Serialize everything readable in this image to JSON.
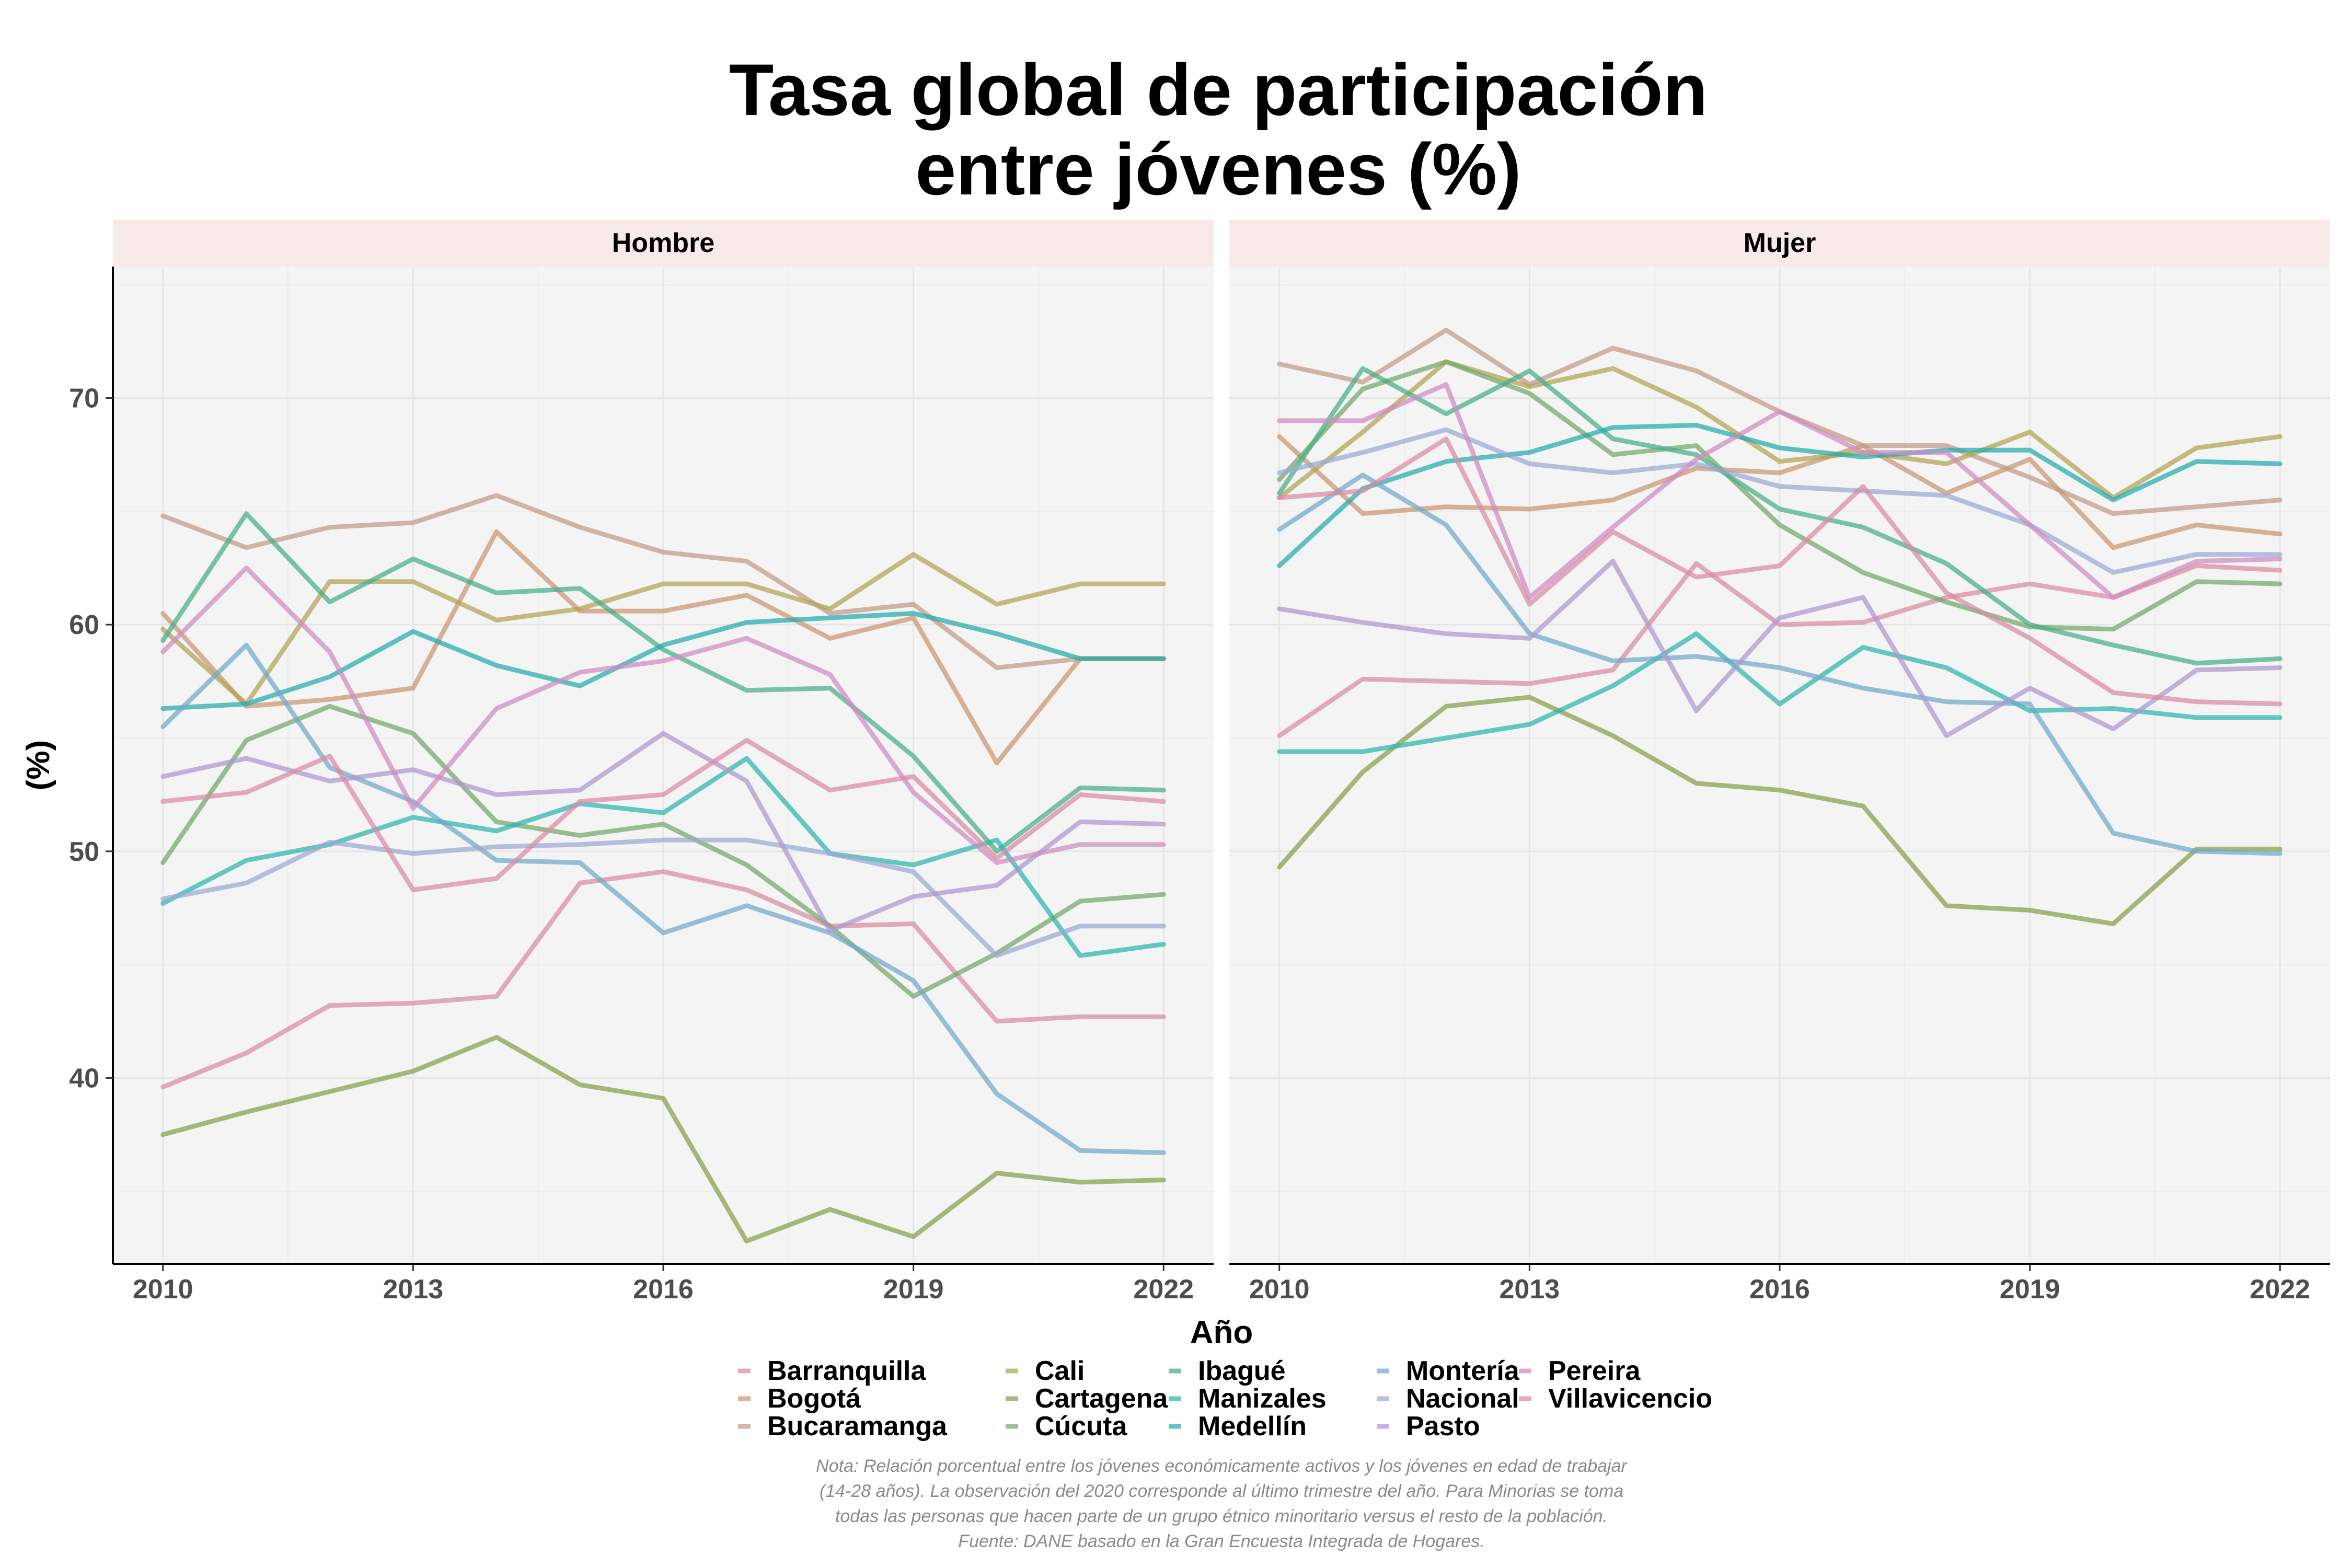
{
  "chart_data": {
    "type": "line",
    "title_lines": [
      "Tasa global de participación",
      "entre jóvenes (%)"
    ],
    "xlabel": "Año",
    "ylabel": "(%)",
    "x": [
      2010,
      2011,
      2012,
      2013,
      2014,
      2015,
      2016,
      2017,
      2018,
      2019,
      2020,
      2021,
      2022
    ],
    "x_ticks": [
      2010,
      2013,
      2016,
      2019,
      2022
    ],
    "x_tick_labels": [
      "2010",
      "2013",
      "2016",
      "2019",
      "2022"
    ],
    "xlim": [
      2009.4,
      2022.6
    ],
    "y_ticks": [
      40,
      50,
      60,
      70
    ],
    "y_tick_labels": [
      "40",
      "50",
      "60",
      "70"
    ],
    "ylim": [
      31.8,
      75.8
    ],
    "grid": true,
    "legend_position": "bottom",
    "colors": {
      "Barranquilla": "#d98ca0",
      "Bogotá": "#c9966f",
      "Bucaramanga": "#c39a86",
      "Cali": "#b1a453",
      "Cartagena": "#85a04a",
      "Cúcuta": "#71a86a",
      "Ibagué": "#46ad88",
      "Manizales": "#2cb4ad",
      "Medellín": "#22aaaa",
      "Montería": "#6fa8cb",
      "Nacional": "#98a9d2",
      "Pasto": "#ad97d0",
      "Pereira": "#cf8ac2",
      "Villavicencio": "#d88aa4"
    },
    "legend": [
      [
        "Barranquilla",
        "Bogotá",
        "Bucaramanga"
      ],
      [
        "Cali",
        "Cartagena",
        "Cúcuta"
      ],
      [
        "Ibagué",
        "Manizales",
        "Medellín"
      ],
      [
        "Montería",
        "Nacional",
        "Pasto"
      ],
      [
        "Pereira",
        "Villavicencio"
      ]
    ],
    "panels": [
      {
        "label": "Hombre",
        "series": [
          {
            "name": "Barranquilla",
            "values": [
              39.6,
              41.1,
              43.2,
              43.3,
              43.6,
              48.6,
              49.1,
              48.3,
              46.7,
              46.8,
              42.5,
              42.7,
              42.7
            ]
          },
          {
            "name": "Bogotá",
            "values": [
              60.5,
              56.4,
              56.7,
              57.2,
              64.1,
              60.6,
              60.6,
              61.3,
              59.4,
              60.3,
              53.9,
              58.5,
              58.5
            ]
          },
          {
            "name": "Bucaramanga",
            "values": [
              64.8,
              63.4,
              64.3,
              64.5,
              65.7,
              64.3,
              63.2,
              62.8,
              60.5,
              60.9,
              58.1,
              58.5,
              58.5
            ]
          },
          {
            "name": "Cali",
            "values": [
              59.8,
              56.5,
              61.9,
              61.9,
              60.2,
              60.7,
              61.8,
              61.8,
              60.7,
              63.1,
              60.9,
              61.8,
              61.8
            ]
          },
          {
            "name": "Cartagena",
            "values": [
              37.5,
              38.5,
              39.4,
              40.3,
              41.8,
              39.7,
              39.1,
              32.8,
              34.2,
              33.0,
              35.8,
              35.4,
              35.5
            ]
          },
          {
            "name": "Cúcuta",
            "values": [
              49.5,
              54.9,
              56.4,
              55.2,
              51.3,
              50.7,
              51.2,
              49.4,
              46.7,
              43.6,
              45.5,
              47.8,
              48.1
            ]
          },
          {
            "name": "Ibagué",
            "values": [
              59.3,
              64.9,
              61.0,
              62.9,
              61.4,
              61.6,
              58.9,
              57.1,
              57.2,
              54.2,
              50.0,
              52.8,
              52.7
            ]
          },
          {
            "name": "Manizales",
            "values": [
              47.7,
              49.6,
              50.3,
              51.5,
              50.9,
              52.1,
              51.7,
              54.1,
              49.9,
              49.4,
              50.5,
              45.4,
              45.9
            ]
          },
          {
            "name": "Medellín",
            "values": [
              56.3,
              56.5,
              57.7,
              59.7,
              58.2,
              57.3,
              59.1,
              60.1,
              60.3,
              60.5,
              59.6,
              58.5,
              58.5
            ]
          },
          {
            "name": "Montería",
            "values": [
              55.5,
              59.1,
              53.7,
              52.2,
              49.6,
              49.5,
              46.4,
              47.6,
              46.4,
              44.3,
              39.3,
              36.8,
              36.7
            ]
          },
          {
            "name": "Nacional",
            "values": [
              47.9,
              48.6,
              50.4,
              49.9,
              50.2,
              50.3,
              50.5,
              50.5,
              49.9,
              49.1,
              45.4,
              46.7,
              46.7
            ]
          },
          {
            "name": "Pasto",
            "values": [
              53.3,
              54.1,
              53.1,
              53.6,
              52.5,
              52.7,
              55.2,
              53.1,
              46.5,
              48.0,
              48.5,
              51.3,
              51.2
            ]
          },
          {
            "name": "Pereira",
            "values": [
              58.8,
              62.5,
              58.8,
              51.9,
              56.3,
              57.9,
              58.4,
              59.4,
              57.8,
              52.6,
              49.5,
              50.3,
              50.3
            ]
          },
          {
            "name": "Villavicencio",
            "values": [
              52.2,
              52.6,
              54.2,
              48.3,
              48.8,
              52.2,
              52.5,
              54.9,
              52.7,
              53.3,
              49.7,
              52.5,
              52.2
            ]
          }
        ]
      },
      {
        "label": "Mujer",
        "series": [
          {
            "name": "Barranquilla",
            "values": [
              55.1,
              57.6,
              57.5,
              57.4,
              58.0,
              62.7,
              60.0,
              60.1,
              61.2,
              61.8,
              61.2,
              62.6,
              62.4
            ]
          },
          {
            "name": "Bogotá",
            "values": [
              68.3,
              64.9,
              65.2,
              65.1,
              65.5,
              66.9,
              66.7,
              67.9,
              65.8,
              67.3,
              63.4,
              64.4,
              64.0
            ]
          },
          {
            "name": "Bucaramanga",
            "values": [
              71.5,
              70.7,
              73.0,
              70.6,
              72.2,
              71.2,
              69.4,
              67.9,
              67.9,
              66.5,
              64.9,
              65.2,
              65.5
            ]
          },
          {
            "name": "Cali",
            "values": [
              65.6,
              68.5,
              71.6,
              70.5,
              71.3,
              69.6,
              67.2,
              67.6,
              67.1,
              68.5,
              65.6,
              67.8,
              68.3
            ]
          },
          {
            "name": "Cartagena",
            "values": [
              49.3,
              53.5,
              56.4,
              56.8,
              55.1,
              53.0,
              52.7,
              52.0,
              47.6,
              47.4,
              46.8,
              50.1,
              50.1
            ]
          },
          {
            "name": "Cúcuta",
            "values": [
              66.4,
              70.4,
              71.6,
              70.2,
              67.5,
              67.9,
              64.4,
              62.3,
              61.0,
              59.9,
              59.8,
              61.9,
              61.8
            ]
          },
          {
            "name": "Ibagué",
            "values": [
              65.8,
              71.3,
              69.3,
              71.2,
              68.2,
              67.5,
              65.1,
              64.3,
              62.7,
              60.0,
              59.1,
              58.3,
              58.5
            ]
          },
          {
            "name": "Manizales",
            "values": [
              54.4,
              54.4,
              55.0,
              55.6,
              57.3,
              59.6,
              56.5,
              59.0,
              58.1,
              56.2,
              56.3,
              55.9,
              55.9
            ]
          },
          {
            "name": "Medellín",
            "values": [
              62.6,
              66.0,
              67.2,
              67.6,
              68.7,
              68.8,
              67.8,
              67.4,
              67.7,
              67.7,
              65.5,
              67.2,
              67.1
            ]
          },
          {
            "name": "Montería",
            "values": [
              64.2,
              66.6,
              64.4,
              59.6,
              58.4,
              58.6,
              58.1,
              57.2,
              56.6,
              56.5,
              50.8,
              50.0,
              49.9
            ]
          },
          {
            "name": "Nacional",
            "values": [
              66.7,
              67.6,
              68.6,
              67.1,
              66.7,
              67.1,
              66.1,
              65.9,
              65.7,
              64.4,
              62.3,
              63.1,
              63.1
            ]
          },
          {
            "name": "Pasto",
            "values": [
              60.7,
              60.1,
              59.6,
              59.4,
              62.8,
              56.2,
              60.3,
              61.2,
              55.1,
              57.2,
              55.4,
              58.0,
              58.1
            ]
          },
          {
            "name": "Pereira",
            "values": [
              69.0,
              69.0,
              70.6,
              61.2,
              64.3,
              67.3,
              69.4,
              67.6,
              67.6,
              64.4,
              61.2,
              62.8,
              62.9
            ]
          },
          {
            "name": "Villavicencio",
            "values": [
              65.6,
              65.9,
              68.2,
              60.9,
              64.1,
              62.1,
              62.6,
              66.1,
              61.4,
              59.4,
              57.0,
              56.6,
              56.5
            ]
          }
        ]
      }
    ],
    "note_lines": [
      "Nota: Relación porcentual entre los jóvenes económicamente activos y los jóvenes en edad de trabajar",
      "(14-28 años). La observación del 2020 corresponde al último trimestre del año. Para Minorias se toma",
      "todas las personas que hacen parte de un grupo étnico minoritario versus el resto de la población.",
      "Fuente: DANE basado en la Gran Encuesta Integrada de Hogares."
    ]
  }
}
